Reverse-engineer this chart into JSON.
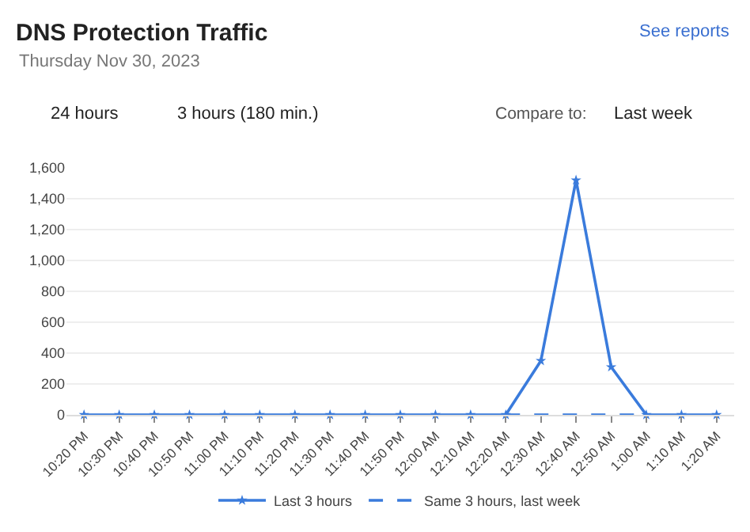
{
  "chart_data": {
    "type": "line",
    "title": "DNS Protection Traffic",
    "subtitle": "Thursday Nov 30, 2023",
    "categories": [
      "10:20 PM",
      "10:30 PM",
      "10:40 PM",
      "10:50 PM",
      "11:00 PM",
      "11:10 PM",
      "11:20 PM",
      "11:30 PM",
      "11:40 PM",
      "11:50 PM",
      "12:00 AM",
      "12:10 AM",
      "12:20 AM",
      "12:30 AM",
      "12:40 AM",
      "12:50 AM",
      "1:00 AM",
      "1:10 AM",
      "1:20 AM"
    ],
    "series": [
      {
        "name": "Last 3 hours",
        "color": "#3a7bdc",
        "line_style": "solid",
        "marker": "star",
        "values": [
          0,
          0,
          0,
          0,
          0,
          0,
          0,
          0,
          0,
          0,
          0,
          0,
          0,
          350,
          1520,
          310,
          0,
          0,
          0
        ]
      },
      {
        "name": "Same 3 hours, last week",
        "color": "#3a7bdc",
        "line_style": "dashed",
        "marker": "none",
        "values": [
          null,
          null,
          null,
          null,
          null,
          null,
          null,
          null,
          null,
          null,
          null,
          null,
          0,
          0,
          0,
          0,
          0,
          null,
          null
        ]
      }
    ],
    "ylim": [
      0,
      1600
    ],
    "yticks": [
      0,
      {
        "value": 200,
        "label": "200"
      },
      {
        "value": 400,
        "label": "400"
      },
      {
        "value": 600,
        "label": "600"
      },
      {
        "value": 800,
        "label": "800"
      },
      {
        "value": 1000,
        "label": "1,000"
      },
      {
        "value": 1200,
        "label": "1,200"
      },
      {
        "value": 1400,
        "label": "1,400"
      },
      {
        "value": 1600,
        "label": "1,600"
      }
    ],
    "grid": "y",
    "legend": "bottom",
    "annotations": [
      "See reports",
      "24 hours",
      "3 hours (180 min.)",
      "Compare to:",
      "Last week"
    ]
  }
}
